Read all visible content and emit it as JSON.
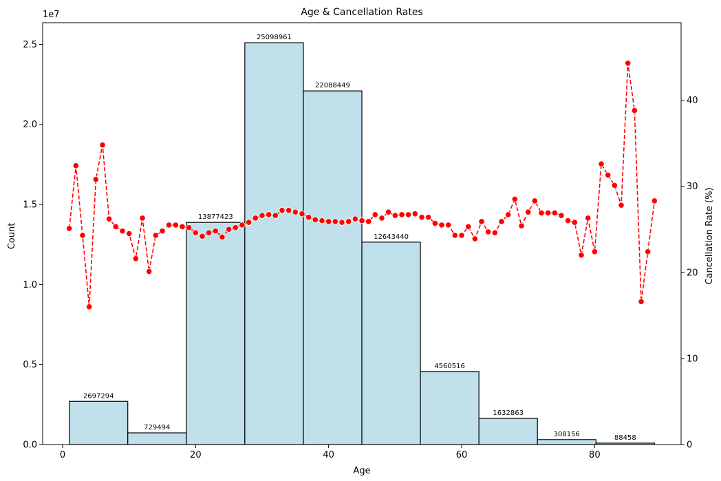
{
  "chart_data": {
    "type": "bar+line",
    "title": "Age & Cancellation Rates",
    "xlabel": "Age",
    "ylabel_left": "Count",
    "ylabel_right": "Cancellation Rate (%)",
    "left_axis_multiplier": "1e7",
    "xlim": [
      -3,
      93
    ],
    "ylim_left": [
      0,
      26350000
    ],
    "ylim_right": [
      0,
      49
    ],
    "x_ticks": [
      0,
      20,
      40,
      60,
      80
    ],
    "x_tick_labels": [
      "0",
      "20",
      "40",
      "60",
      "80"
    ],
    "y_left_ticks": [
      0,
      5000000,
      10000000,
      15000000,
      20000000,
      25000000
    ],
    "y_left_tick_labels": [
      "0.0",
      "0.5",
      "1.0",
      "1.5",
      "2.0",
      "2.5"
    ],
    "y_right_ticks": [
      0,
      10,
      20,
      30,
      40
    ],
    "y_right_tick_labels": [
      "0",
      "10",
      "20",
      "30",
      "40"
    ],
    "histogram": {
      "name": "Count",
      "color": "#c0e1ec",
      "bins": [
        {
          "start": 1.0,
          "end": 9.8,
          "value": 2697294,
          "label": "2697294"
        },
        {
          "start": 9.8,
          "end": 18.6,
          "value": 729494,
          "label": "729494"
        },
        {
          "start": 18.6,
          "end": 27.4,
          "value": 13877423,
          "label": "13877423"
        },
        {
          "start": 27.4,
          "end": 36.2,
          "value": 25098961,
          "label": "25098961"
        },
        {
          "start": 36.2,
          "end": 45.0,
          "value": 22088449,
          "label": "22088449"
        },
        {
          "start": 45.0,
          "end": 53.8,
          "value": 12643440,
          "label": "12643440"
        },
        {
          "start": 53.8,
          "end": 62.6,
          "value": 4560516,
          "label": "4560516"
        },
        {
          "start": 62.6,
          "end": 71.4,
          "value": 1632863,
          "label": "1632863"
        },
        {
          "start": 71.4,
          "end": 80.2,
          "value": 308156,
          "label": "308156"
        },
        {
          "start": 80.2,
          "end": 89.0,
          "value": 88458,
          "label": "88458"
        }
      ]
    },
    "line": {
      "name": "Cancellation Rate (%)",
      "color": "#ff0000",
      "style": "dashed",
      "marker": "circle",
      "x": [
        1,
        2,
        3,
        4,
        5,
        6,
        7,
        8,
        9,
        10,
        11,
        12,
        13,
        14,
        15,
        16,
        17,
        18,
        19,
        20,
        21,
        22,
        23,
        24,
        25,
        26,
        27,
        28,
        29,
        30,
        31,
        32,
        33,
        34,
        35,
        36,
        37,
        38,
        39,
        40,
        41,
        42,
        43,
        44,
        45,
        46,
        47,
        48,
        49,
        50,
        51,
        52,
        53,
        54,
        55,
        56,
        57,
        58,
        59,
        60,
        61,
        62,
        63,
        64,
        65,
        66,
        67,
        68,
        69,
        70,
        71,
        72,
        73,
        74,
        75,
        76,
        77,
        78,
        79,
        80,
        81,
        82,
        83,
        84,
        85,
        86,
        87,
        88,
        89
      ],
      "y": [
        25.1,
        32.4,
        24.3,
        16.0,
        30.8,
        34.8,
        26.2,
        25.3,
        24.8,
        24.5,
        21.6,
        26.3,
        20.1,
        24.3,
        24.8,
        25.5,
        25.5,
        25.3,
        25.2,
        24.6,
        24.2,
        24.6,
        24.8,
        24.1,
        25.0,
        25.2,
        25.5,
        25.8,
        26.3,
        26.6,
        26.7,
        26.6,
        27.2,
        27.2,
        27.0,
        26.8,
        26.4,
        26.1,
        26.0,
        25.9,
        25.9,
        25.8,
        25.9,
        26.2,
        26.0,
        25.9,
        26.7,
        26.3,
        27.0,
        26.6,
        26.7,
        26.7,
        26.8,
        26.4,
        26.4,
        25.7,
        25.5,
        25.5,
        24.3,
        24.3,
        25.3,
        23.9,
        25.9,
        24.7,
        24.6,
        25.9,
        26.7,
        28.5,
        25.4,
        27.0,
        28.3,
        26.9,
        26.9,
        26.9,
        26.6,
        26.0,
        25.8,
        22.0,
        26.3,
        22.4,
        32.6,
        31.3,
        30.1,
        27.8,
        44.3,
        38.8,
        16.6,
        22.4,
        28.3
      ]
    }
  }
}
